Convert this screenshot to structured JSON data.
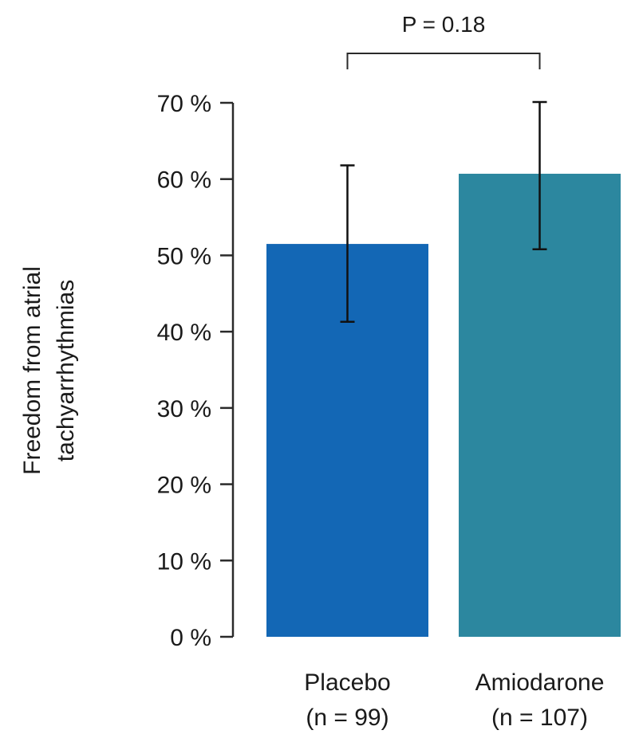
{
  "chart_data": {
    "type": "bar",
    "categories": [
      "Placebo",
      "Amiodarone"
    ],
    "category_sublabels": [
      "(n = 99)",
      "(n = 107)"
    ],
    "values": [
      51.5,
      60.7
    ],
    "error_low": [
      41.3,
      50.8
    ],
    "error_high": [
      61.8,
      70.1
    ],
    "bar_colors": [
      "#1367b5",
      "#2c879f"
    ],
    "ylabel_lines": [
      "Freedom from atrial",
      "tachyarrhythmias"
    ],
    "ylim": [
      0,
      70
    ],
    "yticks": [
      0,
      10,
      20,
      30,
      40,
      50,
      60,
      70
    ],
    "ytick_labels": [
      "0 %",
      "10 %",
      "20 %",
      "30 %",
      "40 %",
      "50 %",
      "60 %",
      "70 %"
    ],
    "grid": false,
    "annotation": "P = 0.18"
  }
}
